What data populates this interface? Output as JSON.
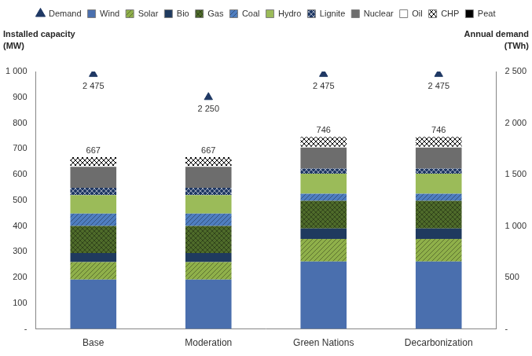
{
  "chart_data": {
    "type": "bar",
    "stacked": true,
    "categories": [
      "Base",
      "Moderation",
      "Green Nations",
      "Decarbonization"
    ],
    "ylabel": [
      "Installed capacity",
      "(MW)"
    ],
    "y2label": [
      "Annual demand",
      "(TWh)"
    ],
    "ylim": [
      0,
      1000
    ],
    "yticks": [
      {
        "value": 0,
        "label": "-"
      },
      100,
      200,
      300,
      400,
      500,
      600,
      700,
      800,
      900,
      {
        "value": 1000,
        "label": "1 000"
      }
    ],
    "y2lim": [
      0,
      2500
    ],
    "y2ticks": [
      {
        "value": 0,
        "label": "-"
      },
      500,
      {
        "value": 1000,
        "label": "1 000"
      },
      {
        "value": 1500,
        "label": "1 500"
      },
      {
        "value": 2000,
        "label": "2 000"
      },
      {
        "value": 2500,
        "label": "2 500"
      }
    ],
    "grid": false,
    "legend": "top",
    "totals": [
      667,
      667,
      746,
      746
    ],
    "series": [
      {
        "name": "Wind",
        "color": "#4a6fae",
        "values": [
          192,
          192,
          262,
          262
        ]
      },
      {
        "name": "Solar",
        "color": "#8fb04a",
        "values": [
          68,
          68,
          88,
          88
        ]
      },
      {
        "name": "Bio",
        "color": "#1f3a5f",
        "values": [
          35,
          35,
          40,
          40
        ]
      },
      {
        "name": "Gas",
        "color": "#4e6b2a",
        "values": [
          105,
          105,
          108,
          108
        ]
      },
      {
        "name": "Coal",
        "color": "#4f7ec0",
        "values": [
          48,
          48,
          27,
          27
        ]
      },
      {
        "name": "Hydro",
        "color": "#9bbb59",
        "values": [
          72,
          72,
          78,
          78
        ]
      },
      {
        "name": "Lignite",
        "color": "#1f3864",
        "values": [
          28,
          28,
          20,
          20
        ]
      },
      {
        "name": "Nuclear",
        "color": "#6d6d6d",
        "values": [
          82,
          82,
          82,
          82
        ]
      },
      {
        "name": "Oil",
        "color": "#ffffff",
        "values": [
          3,
          3,
          3,
          3
        ]
      },
      {
        "name": "CHP",
        "color": "#ffffff",
        "values": [
          34,
          34,
          38,
          38
        ]
      },
      {
        "name": "Peat",
        "color": "#000000",
        "values": [
          0,
          0,
          0,
          0
        ]
      },
      {
        "name": "Demand",
        "type": "scatter",
        "marker": "triangle",
        "axis": "y2",
        "color": "#1f3864",
        "data_labels": true,
        "values": [
          2475,
          2250,
          2475,
          2475
        ],
        "value_labels": [
          "2 475",
          "2 250",
          "2 475",
          "2 475"
        ]
      }
    ]
  }
}
